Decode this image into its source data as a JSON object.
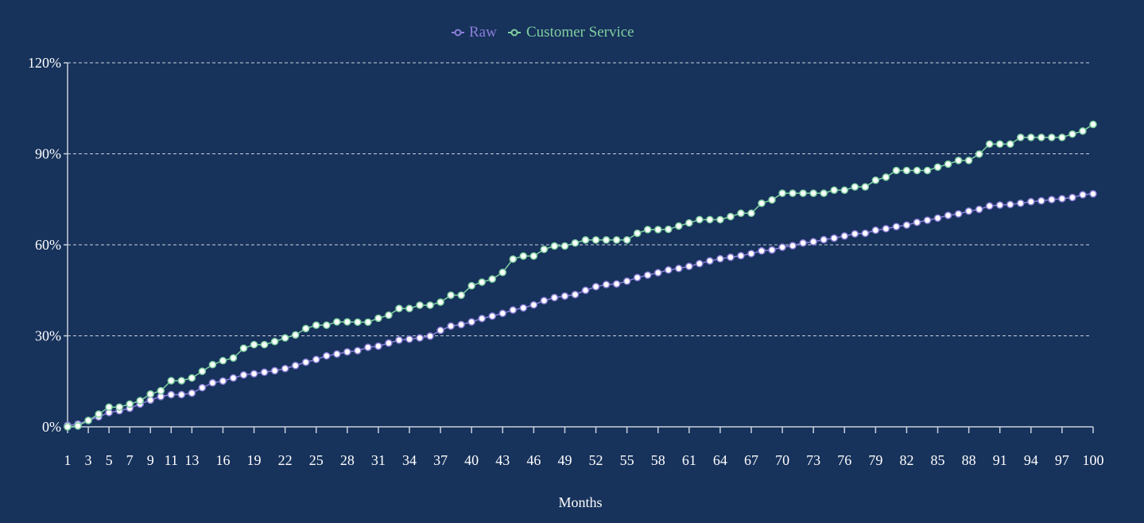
{
  "colors": {
    "background": "#17325b",
    "raw": "#8b7fd8",
    "customer_service": "#7fcfa0",
    "axis": "#c9d1dc",
    "grid": "#c9d1dc",
    "text": "#ffffff",
    "marker_fill": "#ffffff"
  },
  "chart_data": {
    "type": "line",
    "title": "",
    "xlabel": "Months",
    "ylabel": "",
    "ylim": [
      0,
      120
    ],
    "y_ticks": [
      0,
      30,
      60,
      90,
      120
    ],
    "y_tick_labels": [
      "0%",
      "30%",
      "60%",
      "90%",
      "120%"
    ],
    "grid": true,
    "legend_position": "top-center",
    "x": [
      1,
      2,
      3,
      4,
      5,
      6,
      7,
      8,
      9,
      10,
      11,
      12,
      13,
      14,
      15,
      16,
      17,
      18,
      19,
      20,
      21,
      22,
      23,
      24,
      25,
      26,
      27,
      28,
      29,
      30,
      31,
      32,
      33,
      34,
      35,
      36,
      37,
      38,
      39,
      40,
      41,
      42,
      43,
      44,
      45,
      46,
      47,
      48,
      49,
      50,
      51,
      52,
      53,
      54,
      55,
      56,
      57,
      58,
      59,
      60,
      61,
      62,
      63,
      64,
      65,
      66,
      67,
      68,
      69,
      70,
      71,
      72,
      73,
      74,
      75,
      76,
      77,
      78,
      79,
      80,
      81,
      82,
      83,
      84,
      85,
      86,
      87,
      88,
      89,
      90,
      91,
      92,
      93,
      94,
      95,
      96,
      97,
      98,
      99,
      100
    ],
    "x_tick_labels": [
      "1",
      "3",
      "5",
      "7",
      "9",
      "11",
      "13",
      "16",
      "19",
      "22",
      "25",
      "28",
      "31",
      "34",
      "37",
      "40",
      "43",
      "46",
      "49",
      "52",
      "55",
      "58",
      "61",
      "64",
      "67",
      "70",
      "73",
      "76",
      "79",
      "82",
      "85",
      "88",
      "91",
      "94",
      "97",
      "100"
    ],
    "series": [
      {
        "name": "Raw",
        "values": [
          0.5,
          0.9,
          2.1,
          3.3,
          4.7,
          5.3,
          6.1,
          7.5,
          8.8,
          10.0,
          10.6,
          10.6,
          11.1,
          12.9,
          14.5,
          15.1,
          16.1,
          17.1,
          17.5,
          18.0,
          18.5,
          19.2,
          20.2,
          21.3,
          22.2,
          23.4,
          24.0,
          24.7,
          25.1,
          26.2,
          26.6,
          27.6,
          28.6,
          28.9,
          29.3,
          29.9,
          31.8,
          33.2,
          33.7,
          34.6,
          35.7,
          36.5,
          37.4,
          38.5,
          39.2,
          40.2,
          41.6,
          42.6,
          43.1,
          43.6,
          45.0,
          46.2,
          46.9,
          47.1,
          48.0,
          49.2,
          50.0,
          50.8,
          51.7,
          52.2,
          52.9,
          53.8,
          54.7,
          55.4,
          55.9,
          56.4,
          57.1,
          58.0,
          58.3,
          59.2,
          59.7,
          60.6,
          61.0,
          61.7,
          62.2,
          62.9,
          63.6,
          63.8,
          64.8,
          65.3,
          66.0,
          66.5,
          67.4,
          68.1,
          68.8,
          69.7,
          70.2,
          71.1,
          71.7,
          72.8,
          73.1,
          73.3,
          73.7,
          74.2,
          74.5,
          74.9,
          75.2,
          75.6,
          76.5,
          76.8
        ]
      },
      {
        "name": "Customer Service",
        "values": [
          0.0,
          0.3,
          2.1,
          4.2,
          6.5,
          6.5,
          7.5,
          8.6,
          10.8,
          11.9,
          15.2,
          15.2,
          16.1,
          18.3,
          20.5,
          21.8,
          22.7,
          25.9,
          27.1,
          27.1,
          28.1,
          29.3,
          30.3,
          32.4,
          33.5,
          33.5,
          34.6,
          34.6,
          34.5,
          34.5,
          35.8,
          36.8,
          39.0,
          39.0,
          40.1,
          40.1,
          41.1,
          43.4,
          43.4,
          46.5,
          47.7,
          48.7,
          50.9,
          55.3,
          56.3,
          56.3,
          58.5,
          59.6,
          59.6,
          60.6,
          61.6,
          61.6,
          61.6,
          61.6,
          61.6,
          63.8,
          65.0,
          65.0,
          65.1,
          66.2,
          67.2,
          68.3,
          68.3,
          68.3,
          69.3,
          70.4,
          70.4,
          73.7,
          74.8,
          77.0,
          77.0,
          77.0,
          77.0,
          77.0,
          78.0,
          78.0,
          79.1,
          79.1,
          81.3,
          82.3,
          84.5,
          84.5,
          84.5,
          84.5,
          85.6,
          86.6,
          87.8,
          87.8,
          89.9,
          93.2,
          93.2,
          93.2,
          95.4,
          95.4,
          95.4,
          95.4,
          95.4,
          96.5,
          97.5,
          99.7
        ]
      }
    ]
  },
  "legend": {
    "items": [
      {
        "label": "Raw",
        "series": 0
      },
      {
        "label": "Customer Service",
        "series": 1
      }
    ]
  }
}
